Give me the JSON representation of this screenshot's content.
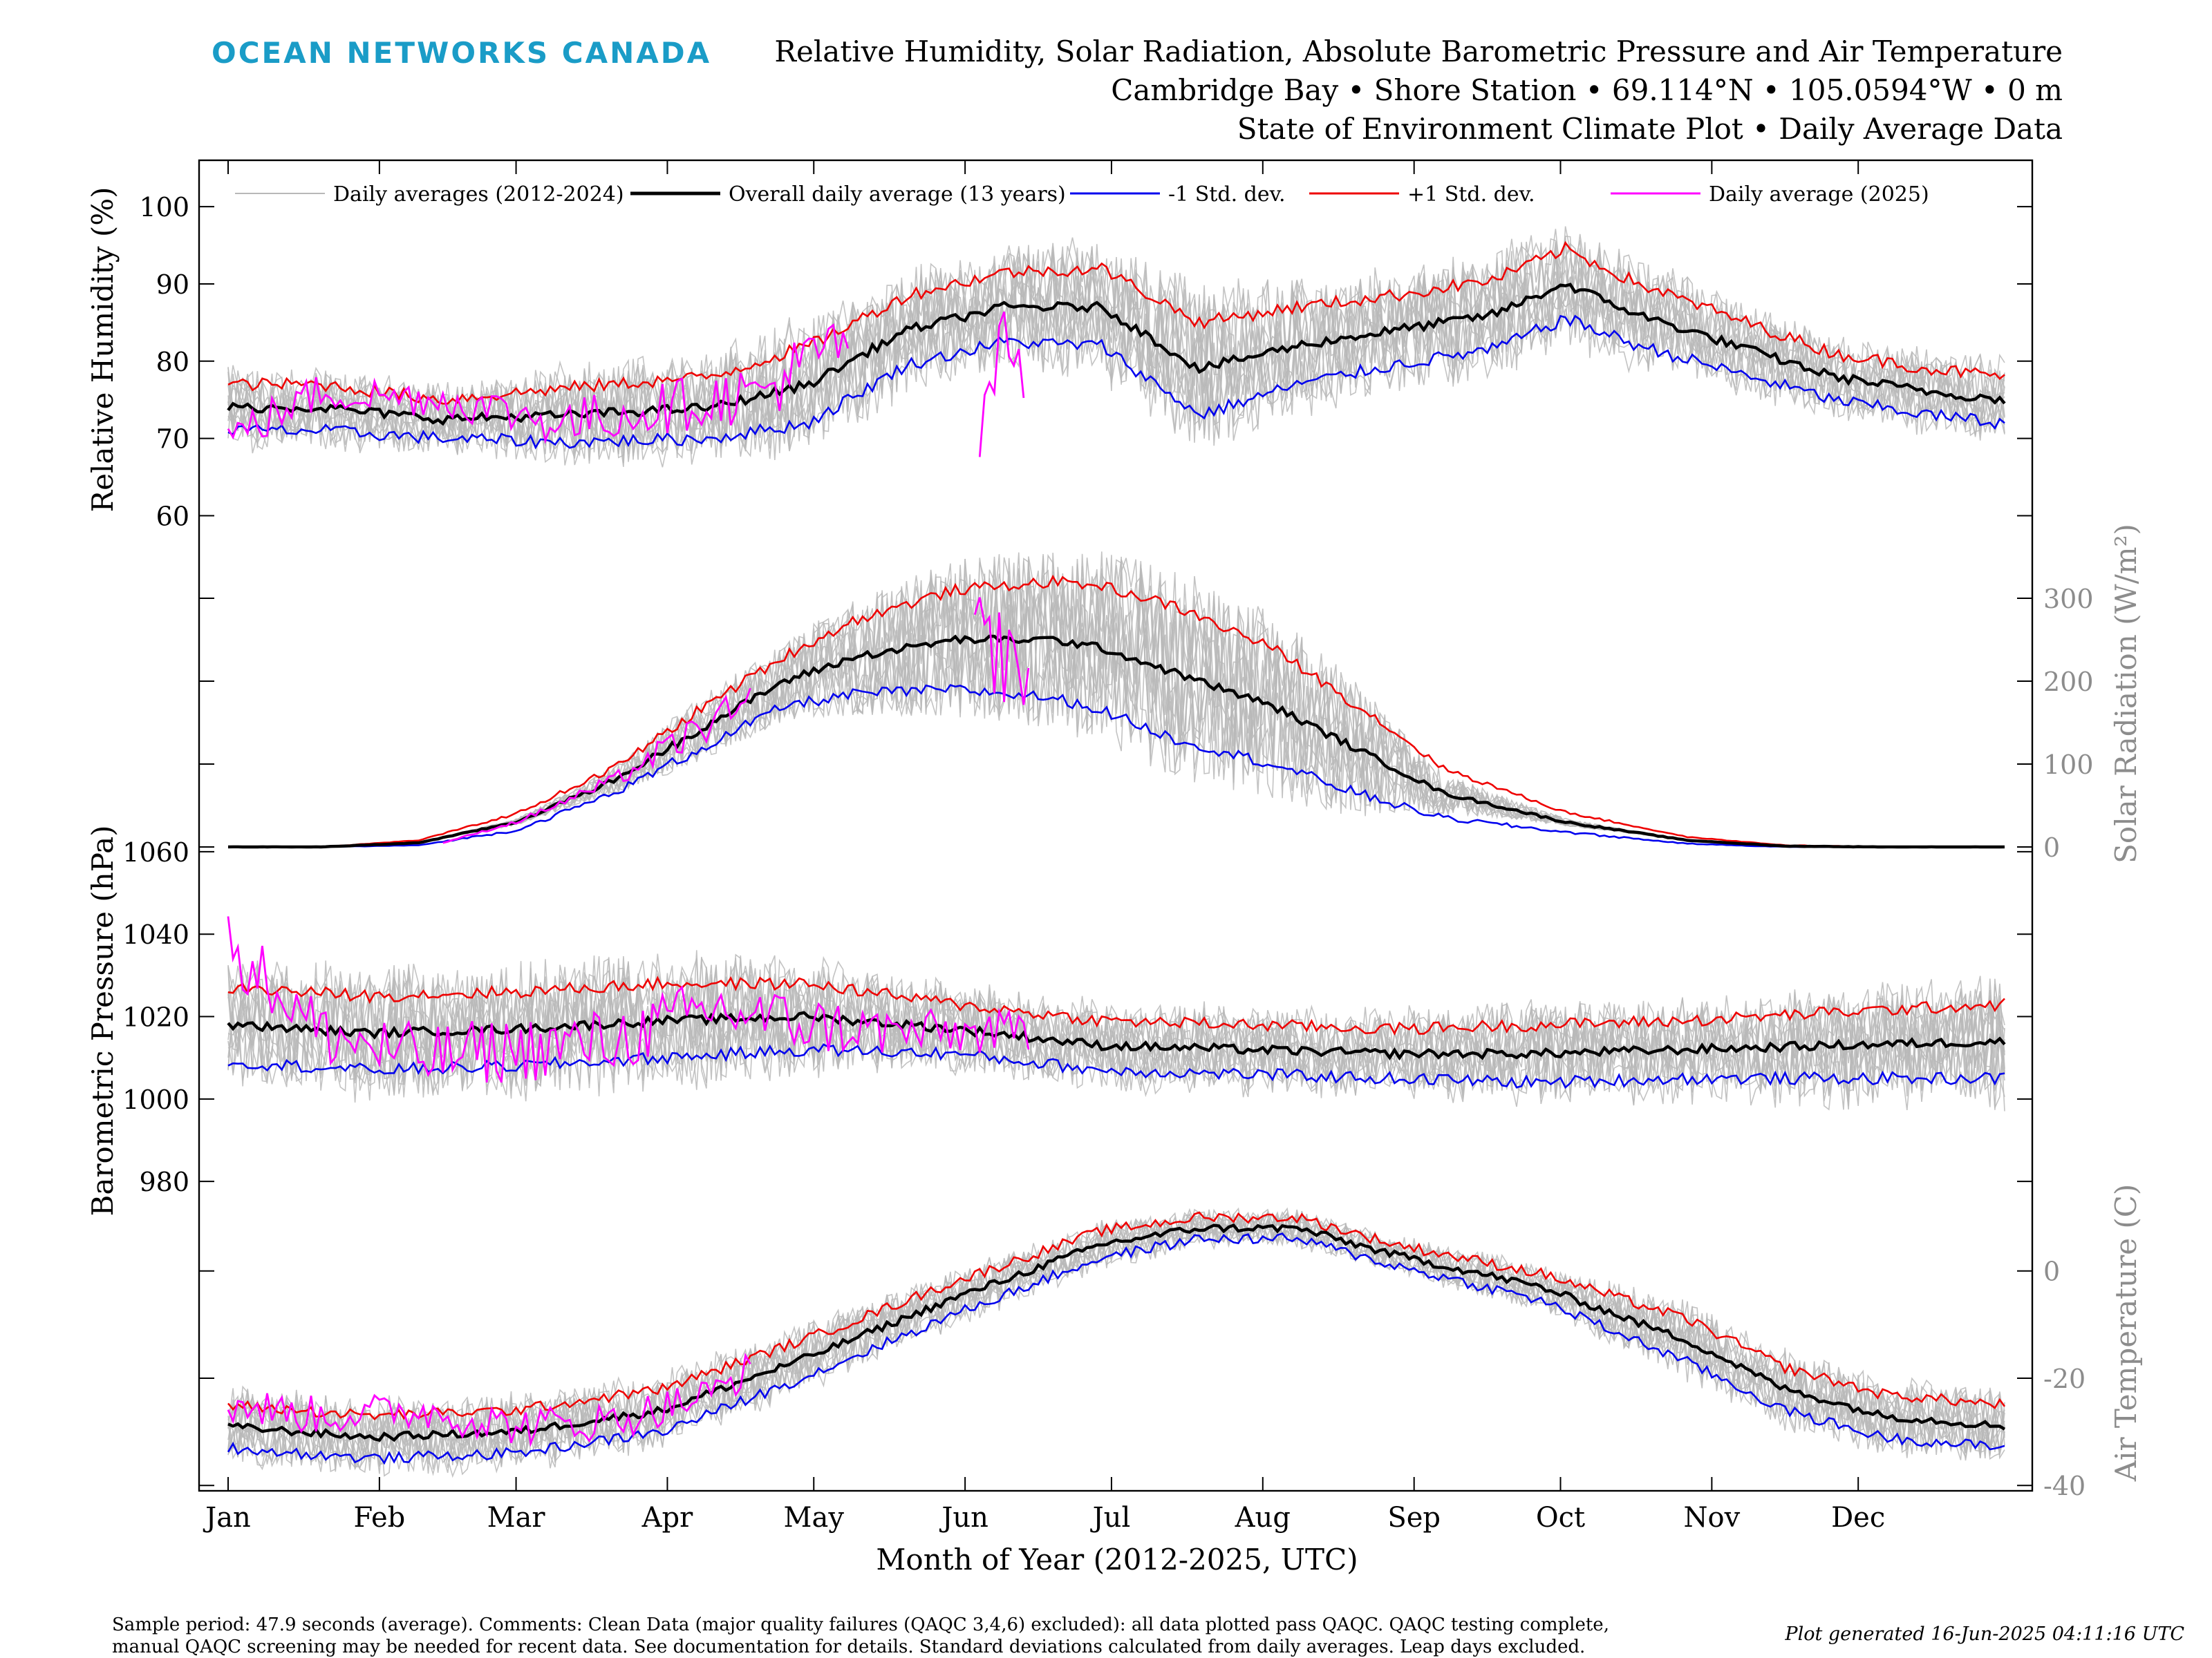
{
  "header": {
    "brand": "OCEAN NETWORKS CANADA",
    "title_lines": [
      "Relative Humidity, Solar Radiation, Absolute Barometric Pressure and Air Temperature",
      "Cambridge Bay • Shore Station • 69.114°N • 105.0594°W • 0 m",
      "State of Environment Climate Plot • Daily Average Data"
    ]
  },
  "footer": {
    "note_line1": "Sample period: 47.9 seconds (average). Comments: Clean Data (major quality failures (QAQC 3,4,6) excluded): all data plotted pass QAQC. QAQC testing complete,",
    "note_line2": "manual QAQC screening may be needed for recent data. See documentation for details. Standard deviations calculated from daily averages. Leap days excluded.",
    "generated": "Plot generated 16-Jun-2025 04:11:16 UTC"
  },
  "colors": {
    "history": "#b8b8b8",
    "mean": "#000000",
    "minus_sd": "#0000ee",
    "plus_sd": "#ee0000",
    "current_year": "#ff00ff",
    "right_axis": "#8c8c8c",
    "brand": "#1a9cc7"
  },
  "chart_data": {
    "type": "line",
    "x_axis": {
      "label": "Month of Year (2012-2025, UTC)",
      "tick_labels": [
        "Jan",
        "Feb",
        "Mar",
        "Apr",
        "May",
        "Jun",
        "Jul",
        "Aug",
        "Sep",
        "Oct",
        "Nov",
        "Dec"
      ],
      "tick_days": [
        1,
        32,
        60,
        91,
        121,
        152,
        182,
        213,
        244,
        274,
        305,
        335
      ],
      "range": [
        1,
        365
      ]
    },
    "legend": {
      "placement": "top",
      "entries": [
        {
          "label": "Daily averages (2012-2024)",
          "color": "#b8b8b8"
        },
        {
          "label": "Overall daily average (13 years)",
          "color": "#000000"
        },
        {
          "label": "-1 Std. dev.",
          "color": "#0000ee"
        },
        {
          "label": "+1 Std. dev.",
          "color": "#ee0000"
        },
        {
          "label": "Daily average (2025)",
          "color": "#ff00ff"
        }
      ]
    },
    "panels": [
      {
        "id": "humidity",
        "ylabel": "Relative Humidity (%)",
        "axis_side": "left",
        "ylim": [
          57,
          106
        ],
        "yticks": [
          60,
          70,
          80,
          90,
          100
        ],
        "mean": {
          "days": [
            1,
            20,
            45,
            70,
            100,
            120,
            140,
            160,
            180,
            200,
            220,
            240,
            260,
            275,
            290,
            310,
            330,
            350,
            365
          ],
          "values": [
            74,
            74,
            72.5,
            73,
            74,
            77,
            84,
            87,
            87,
            79,
            82,
            84,
            86,
            90,
            86,
            82,
            78,
            76,
            75
          ]
        },
        "sd": {
          "days": [
            1,
            20,
            45,
            70,
            100,
            120,
            140,
            160,
            180,
            200,
            220,
            240,
            260,
            275,
            290,
            310,
            330,
            350,
            365
          ],
          "values": [
            3,
            3,
            2.5,
            3.5,
            4,
            5,
            4.5,
            4.5,
            5,
            6,
            5,
            4.5,
            4.5,
            4.5,
            4,
            3.5,
            3,
            3,
            3
          ]
        },
        "current": {
          "segments": [
            {
              "start": 1,
              "end": 128,
              "days": [
                1,
                20,
                45,
                70,
                90,
                110,
                128
              ],
              "values": [
                70,
                76,
                75,
                72,
                74,
                76,
                83
              ]
            },
            {
              "start": 155,
              "end": 164,
              "days": [
                155,
                160,
                164
              ],
              "values": [
                69,
                84,
                76
              ]
            }
          ]
        }
      },
      {
        "id": "solar",
        "ylabel": "Solar Radiation (W/m²)",
        "axis_side": "right",
        "ylim": [
          -10,
          380
        ],
        "yticks": [
          0,
          100,
          200,
          300
        ],
        "mean": {
          "days": [
            1,
            20,
            40,
            60,
            80,
            100,
            115,
            130,
            150,
            170,
            180,
            195,
            215,
            235,
            250,
            275,
            300,
            320,
            340,
            365
          ],
          "values": [
            0,
            0,
            5,
            30,
            80,
            150,
            200,
            230,
            250,
            250,
            240,
            210,
            170,
            110,
            65,
            30,
            8,
            1,
            0,
            0
          ]
        },
        "sd": {
          "days": [
            1,
            20,
            40,
            60,
            80,
            100,
            115,
            130,
            150,
            170,
            180,
            195,
            215,
            235,
            250,
            275,
            300,
            320,
            340,
            365
          ],
          "values": [
            0,
            0,
            3,
            10,
            15,
            25,
            30,
            45,
            60,
            70,
            75,
            80,
            70,
            50,
            30,
            12,
            4,
            1,
            0,
            0
          ]
        },
        "current": {
          "segments": [
            {
              "start": 45,
              "end": 108,
              "days": [
                45,
                60,
                80,
                100,
                108
              ],
              "values": [
                5,
                30,
                80,
                150,
                170
              ]
            },
            {
              "start": 154,
              "end": 165,
              "days": [
                154,
                160,
                165
              ],
              "values": [
                260,
                230,
                210
              ]
            }
          ]
        }
      },
      {
        "id": "pressure",
        "ylabel": "Barometric Pressure (hPa)",
        "axis_side": "left",
        "ylim": [
          975,
          1063
        ],
        "yticks": [
          980,
          1000,
          1020,
          1040,
          1060
        ],
        "mean": {
          "days": [
            1,
            30,
            60,
            90,
            120,
            150,
            180,
            210,
            240,
            270,
            300,
            330,
            365
          ],
          "values": [
            1018,
            1016,
            1017,
            1019,
            1020,
            1017,
            1013,
            1012,
            1011,
            1011,
            1012,
            1013,
            1014
          ]
        },
        "sd": {
          "days": [
            1,
            30,
            60,
            90,
            120,
            150,
            180,
            210,
            240,
            270,
            300,
            330,
            365
          ],
          "values": [
            9,
            9,
            9,
            9,
            8,
            6,
            6,
            6,
            6,
            7,
            7,
            8,
            9
          ]
        },
        "current": {
          "segments": [
            {
              "start": 1,
              "end": 165,
              "days": [
                1,
                20,
                40,
                60,
                80,
                100,
                120,
                140,
                165
              ],
              "values": [
                1038,
                1016,
                1010,
                1012,
                1014,
                1022,
                1018,
                1016,
                1016
              ]
            }
          ]
        }
      },
      {
        "id": "temperature",
        "ylabel": "Air Temperature (C)",
        "axis_side": "right",
        "ylim": [
          -41,
          18
        ],
        "yticks": [
          -40,
          -20,
          0
        ],
        "mean": {
          "days": [
            1,
            30,
            60,
            90,
            120,
            150,
            180,
            200,
            220,
            240,
            270,
            300,
            320,
            340,
            365
          ],
          "values": [
            -29,
            -31,
            -30,
            -26,
            -16,
            -5,
            5,
            8,
            8,
            3,
            -3,
            -13,
            -22,
            -27,
            -29
          ]
        },
        "sd": {
          "days": [
            1,
            30,
            60,
            90,
            120,
            150,
            180,
            200,
            220,
            240,
            270,
            300,
            320,
            340,
            365
          ],
          "values": [
            4,
            4,
            4,
            4,
            3.5,
            3,
            2.5,
            2,
            2,
            2,
            2.5,
            4,
            4,
            4,
            4
          ]
        },
        "current": {
          "segments": [
            {
              "start": 1,
              "end": 108,
              "days": [
                1,
                20,
                40,
                60,
                80,
                100,
                108
              ],
              "values": [
                -25,
                -27,
                -26,
                -29,
                -28,
                -23,
                -18
              ]
            }
          ]
        }
      }
    ]
  }
}
